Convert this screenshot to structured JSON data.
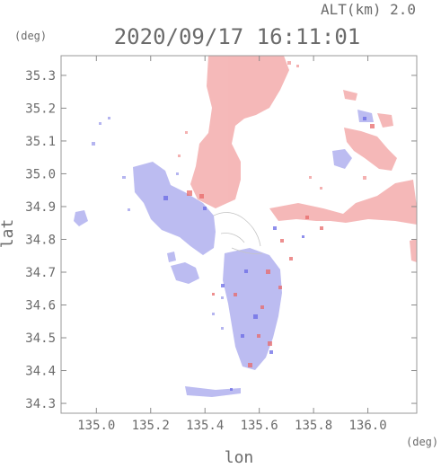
{
  "header": {
    "alt_label": "ALT(km) 2.0",
    "datetime": "2020/09/17 16:11:01",
    "deg_unit_y": "(deg)",
    "deg_unit_x": "(deg)"
  },
  "axes": {
    "xlabel": "lon",
    "ylabel": "lat",
    "x_ticks": [
      "135.0",
      "135.2",
      "135.4",
      "135.6",
      "135.8",
      "136.0"
    ],
    "y_ticks": [
      "35.3",
      "35.2",
      "35.1",
      "35.0",
      "34.9",
      "34.8",
      "34.7",
      "34.6",
      "34.5",
      "34.4",
      "34.3"
    ],
    "x_range": [
      134.87,
      136.18
    ],
    "y_range": [
      34.27,
      35.36
    ]
  },
  "colors": {
    "approaching": "#a9a9ee",
    "receding": "#f3a9a9",
    "strong_approaching": "#6a6ae6",
    "strong_receding": "#e86a6a"
  }
}
